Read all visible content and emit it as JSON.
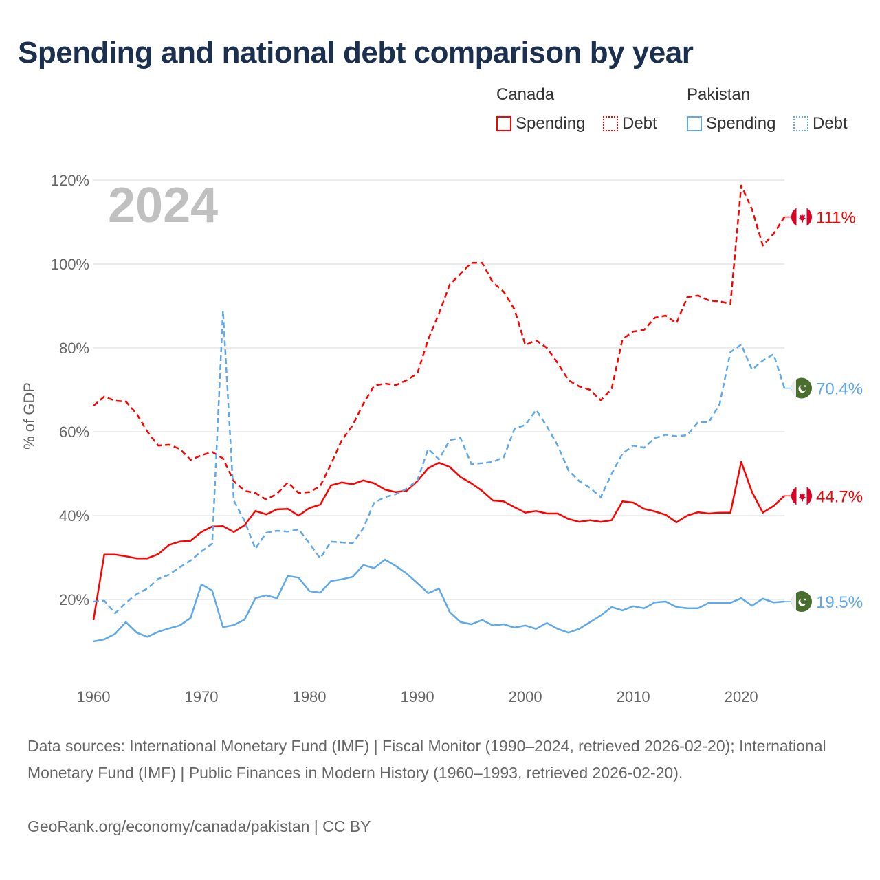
{
  "title": "Spending and national debt comparison by year",
  "legend": {
    "groups": [
      {
        "country": "Canada",
        "items": [
          "Spending",
          "Debt"
        ],
        "color": "#ff0000"
      },
      {
        "country": "Pakistan",
        "items": [
          "Spending",
          "Debt"
        ],
        "color": "#5fa8ea"
      }
    ]
  },
  "year_watermark": "2024",
  "footer": {
    "sources": "Data sources: International Monetary Fund (IMF) | Fiscal Monitor (1990–2024, retrieved 2026-02-20); International Monetary Fund (IMF) | Public Finances in Modern History (1960–1993, retrieved 2026-02-20).",
    "credit": "GeoRank.org/economy/canada/pakistan | CC BY"
  },
  "chart_data": {
    "type": "line",
    "title": "Spending and national debt comparison by year",
    "xlabel": "",
    "ylabel": "% of GDP",
    "xlim": [
      1960,
      2024
    ],
    "ylim": [
      0,
      120
    ],
    "x_ticks": [
      1960,
      1970,
      1980,
      1990,
      2000,
      2010,
      2020
    ],
    "y_ticks": [
      20,
      40,
      60,
      80,
      100,
      120
    ],
    "y_tick_labels": [
      "20%",
      "40%",
      "60%",
      "80%",
      "100%",
      "120%"
    ],
    "grid": true,
    "legend_position": "top-right",
    "x_start": 1960,
    "series": [
      {
        "name": "Canada Spending",
        "color": "#ff0000",
        "style": "solid",
        "end_label": "44.7%",
        "flag": "canada",
        "values": [
          15.1,
          30.7,
          30.7,
          30.3,
          29.8,
          29.8,
          30.8,
          33.0,
          33.8,
          34.0,
          36.1,
          37.4,
          37.5,
          36.1,
          37.7,
          41.1,
          40.3,
          41.5,
          41.6,
          40.0,
          41.8,
          42.6,
          47.2,
          47.9,
          47.5,
          48.4,
          47.7,
          46.2,
          45.6,
          45.9,
          48.2,
          51.3,
          52.6,
          51.6,
          49.2,
          47.7,
          45.9,
          43.6,
          43.4,
          42.0,
          40.7,
          41.1,
          40.5,
          40.5,
          39.2,
          38.5,
          38.9,
          38.5,
          38.9,
          43.4,
          43.1,
          41.6,
          41.0,
          40.2,
          38.4,
          40.0,
          40.8,
          40.5,
          40.7,
          40.7,
          52.8,
          45.6,
          40.7,
          42.3,
          44.7
        ]
      },
      {
        "name": "Canada Debt",
        "color": "#ff0000",
        "style": "dashed",
        "end_label": "111%",
        "flag": "canada",
        "values": [
          66.2,
          68.4,
          67.4,
          67.2,
          64.3,
          60.0,
          56.7,
          56.9,
          55.9,
          53.3,
          54.4,
          55.2,
          53.6,
          48.2,
          45.9,
          45.4,
          43.8,
          45.2,
          47.9,
          45.4,
          45.6,
          47.0,
          52.3,
          58.0,
          61.5,
          66.7,
          71.0,
          71.5,
          71.1,
          72.3,
          73.9,
          82.0,
          88.2,
          95.1,
          97.7,
          100.3,
          100.3,
          95.6,
          93.4,
          89.2,
          80.7,
          81.8,
          80.0,
          76.4,
          72.3,
          70.8,
          70.0,
          67.5,
          70.3,
          82.1,
          83.9,
          84.3,
          87.2,
          87.7,
          85.9,
          92.1,
          92.5,
          91.3,
          91.1,
          90.5,
          118.7,
          113.0,
          104.4,
          107.2,
          111.2
        ]
      },
      {
        "name": "Pakistan Spending",
        "color": "#5fa8ea",
        "style": "solid",
        "end_label": "19.5%",
        "flag": "pakistan",
        "values": [
          10.0,
          10.5,
          11.8,
          14.6,
          12.1,
          11.1,
          12.3,
          13.1,
          13.8,
          15.6,
          23.6,
          22.1,
          13.4,
          13.9,
          15.2,
          20.3,
          21.0,
          20.3,
          25.6,
          25.2,
          22.0,
          21.6,
          24.4,
          24.8,
          25.4,
          28.2,
          27.5,
          29.5,
          28.0,
          26.2,
          23.9,
          21.5,
          22.6,
          17.0,
          14.6,
          14.1,
          15.1,
          13.8,
          14.1,
          13.3,
          13.8,
          13.0,
          14.4,
          13.0,
          12.1,
          13.0,
          14.6,
          16.2,
          18.2,
          17.4,
          18.4,
          17.9,
          19.3,
          19.5,
          18.2,
          17.9,
          17.9,
          19.2,
          19.2,
          19.2,
          20.3,
          18.5,
          20.2,
          19.3,
          19.5
        ]
      },
      {
        "name": "Pakistan Debt",
        "color": "#5fa8ea",
        "style": "dashed",
        "end_label": "70.4%",
        "flag": "pakistan",
        "values": [
          19.5,
          19.7,
          16.7,
          19.2,
          21.3,
          22.6,
          24.9,
          25.9,
          27.7,
          29.3,
          31.5,
          33.3,
          88.9,
          43.6,
          38.7,
          32.1,
          35.9,
          36.4,
          36.2,
          36.7,
          33.4,
          29.8,
          33.8,
          33.6,
          33.4,
          37.0,
          43.1,
          44.4,
          45.1,
          46.4,
          48.4,
          55.9,
          53.4,
          58.0,
          58.5,
          52.3,
          52.5,
          52.8,
          53.9,
          60.7,
          61.6,
          65.2,
          61.3,
          56.7,
          50.8,
          48.2,
          46.6,
          44.4,
          50.0,
          54.8,
          56.7,
          56.2,
          58.5,
          59.3,
          58.9,
          59.2,
          62.3,
          62.3,
          66.6,
          79.0,
          80.8,
          74.8,
          77.0,
          78.5,
          70.4
        ]
      }
    ]
  }
}
